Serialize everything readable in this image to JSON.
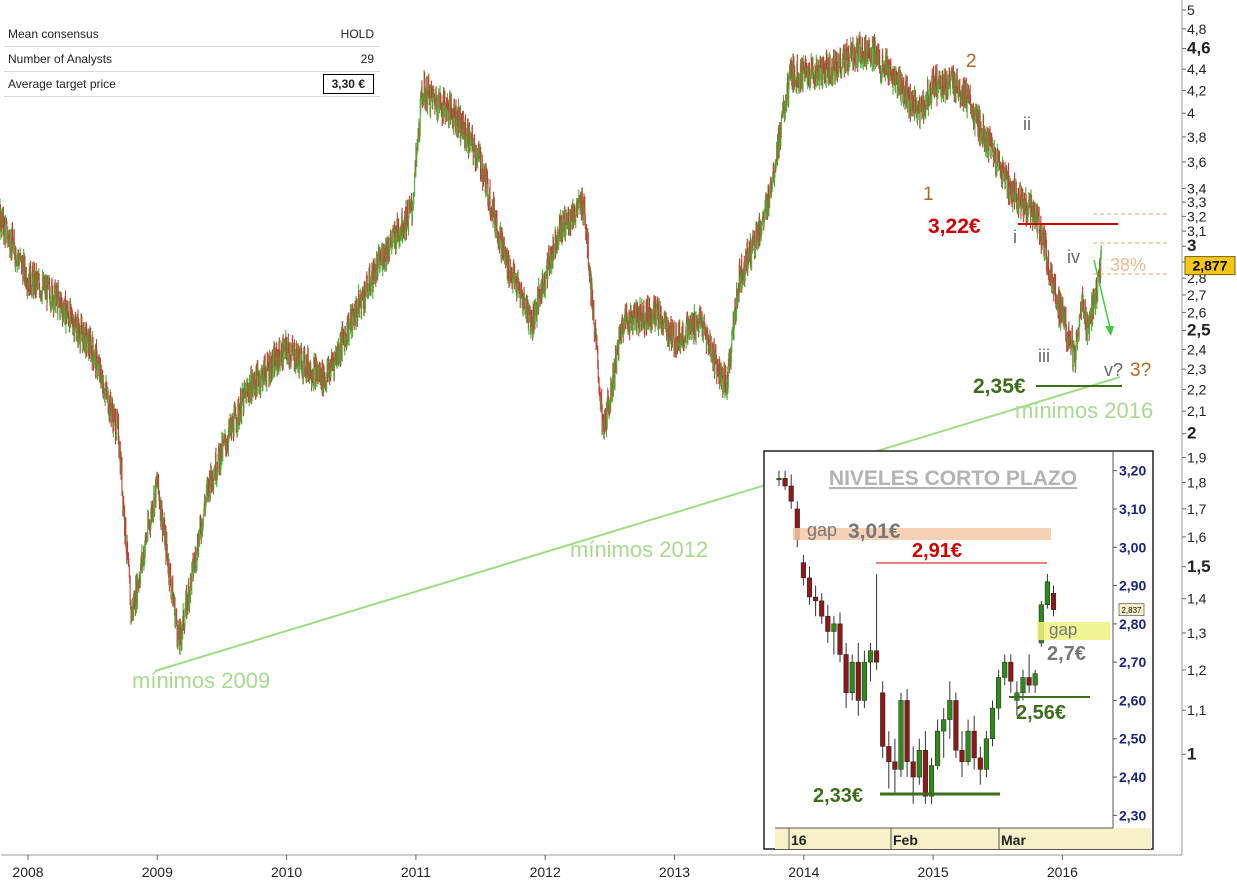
{
  "consensus_table": {
    "rows": [
      {
        "label": "Mean consensus",
        "value": "HOLD"
      },
      {
        "label": "Number of Analysts",
        "value": "29"
      },
      {
        "label": "Average target price",
        "value": "3,30 €"
      }
    ]
  },
  "chart_data": [
    {
      "type": "line",
      "x_axis": {
        "ticks": [
          "2008",
          "2009",
          "2010",
          "2011",
          "2012",
          "2013",
          "2014",
          "2015",
          "2016"
        ]
      },
      "y_axis": {
        "scale": "log",
        "ylim": [
          0.9,
          5
        ],
        "ticks": [
          "5",
          "4,8",
          "4,6",
          "4,4",
          "4,2",
          "4",
          "3,8",
          "3,6",
          "3,4",
          "3,3",
          "3,2",
          "3,1",
          "3",
          "2,9",
          "2,8",
          "2,7",
          "2,6",
          "2,5",
          "2,4",
          "2,3",
          "2,2",
          "2,1",
          "2",
          "1,9",
          "1,8",
          "1,7",
          "1,6",
          "1,5",
          "1,4",
          "1,3",
          "1,2",
          "1,1",
          "1"
        ],
        "bold_ticks": [
          "4,6",
          "3",
          "2,5",
          "2",
          "1,5",
          "1"
        ],
        "current_price_label": "2,877",
        "current_price": 2.877
      },
      "series": [
        {
          "x": [
            2007.5,
            2007.7,
            2008.0,
            2008.2,
            2008.5,
            2008.7,
            2008.8,
            2009.0,
            2009.17,
            2009.4,
            2009.7,
            2010.0,
            2010.1,
            2010.3,
            2010.5,
            2010.75,
            2010.97,
            2011.05,
            2011.3,
            2011.5,
            2011.7,
            2011.9,
            2012.1,
            2012.3,
            2012.45,
            2012.6,
            2012.85,
            2013.0,
            2013.2,
            2013.4,
            2013.5,
            2013.7,
            2013.9,
            2014.0,
            2014.2,
            2014.5,
            2014.7,
            2014.9,
            2015.0,
            2015.2,
            2015.4,
            2015.6,
            2015.8,
            2015.95,
            2016.1,
            2016.15,
            2016.2,
            2016.3
          ],
          "values": [
            3.4,
            3.35,
            2.8,
            2.7,
            2.4,
            2.0,
            1.35,
            1.8,
            1.27,
            1.8,
            2.2,
            2.4,
            2.35,
            2.25,
            2.55,
            2.95,
            3.25,
            4.2,
            4.0,
            3.6,
            2.9,
            2.55,
            3.1,
            3.3,
            2.0,
            2.55,
            2.6,
            2.45,
            2.55,
            2.2,
            2.8,
            3.2,
            4.35,
            4.35,
            4.4,
            4.6,
            4.3,
            4.0,
            4.25,
            4.25,
            3.8,
            3.4,
            3.2,
            2.7,
            2.35,
            2.65,
            2.5,
            2.877
          ]
        }
      ],
      "annotations": [
        {
          "text": "mínimos 2009"
        },
        {
          "text": "mínimos 2012"
        },
        {
          "text": "mínimos 2016"
        },
        {
          "text": "1"
        },
        {
          "text": "2"
        },
        {
          "text": "3?"
        },
        {
          "text": "i"
        },
        {
          "text": "ii"
        },
        {
          "text": "iii"
        },
        {
          "text": "iv"
        },
        {
          "text": "v?"
        },
        {
          "text": "3,22€"
        },
        {
          "text": "2,35€"
        },
        {
          "text": "38%"
        }
      ]
    },
    {
      "type": "candlestick",
      "title": "NIVELES CORTO PLAZO",
      "x_axis": {
        "ticks": [
          "16",
          "Feb",
          "Mar"
        ]
      },
      "y_axis": {
        "ylim": [
          2.28,
          3.22
        ],
        "ticks": [
          "3,20",
          "3,10",
          "3,00",
          "2,90",
          "2,80",
          "2,70",
          "2,60",
          "2,50",
          "2,40",
          "2,30"
        ],
        "current_price_label": "2,837",
        "current_price": 2.837
      },
      "candles": [
        {
          "o": 3.18,
          "h": 3.2,
          "l": 3.16,
          "c": 3.18
        },
        {
          "o": 3.18,
          "h": 3.2,
          "l": 3.15,
          "c": 3.16
        },
        {
          "o": 3.16,
          "h": 3.19,
          "l": 3.1,
          "c": 3.12
        },
        {
          "o": 3.1,
          "h": 3.12,
          "l": 3.0,
          "c": 3.02
        },
        {
          "o": 2.96,
          "h": 2.98,
          "l": 2.9,
          "c": 2.92
        },
        {
          "o": 2.92,
          "h": 2.95,
          "l": 2.85,
          "c": 2.87
        },
        {
          "o": 2.87,
          "h": 2.9,
          "l": 2.82,
          "c": 2.86
        },
        {
          "o": 2.86,
          "h": 2.88,
          "l": 2.8,
          "c": 2.82
        },
        {
          "o": 2.82,
          "h": 2.85,
          "l": 2.75,
          "c": 2.78
        },
        {
          "o": 2.78,
          "h": 2.82,
          "l": 2.72,
          "c": 2.8
        },
        {
          "o": 2.8,
          "h": 2.83,
          "l": 2.7,
          "c": 2.72
        },
        {
          "o": 2.72,
          "h": 2.75,
          "l": 2.58,
          "c": 2.62
        },
        {
          "o": 2.62,
          "h": 2.72,
          "l": 2.6,
          "c": 2.7
        },
        {
          "o": 2.7,
          "h": 2.75,
          "l": 2.56,
          "c": 2.6
        },
        {
          "o": 2.6,
          "h": 2.73,
          "l": 2.58,
          "c": 2.7
        },
        {
          "o": 2.7,
          "h": 2.75,
          "l": 2.65,
          "c": 2.73
        },
        {
          "o": 2.73,
          "h": 2.93,
          "l": 2.68,
          "c": 2.7
        },
        {
          "o": 2.62,
          "h": 2.65,
          "l": 2.45,
          "c": 2.48
        },
        {
          "o": 2.48,
          "h": 2.52,
          "l": 2.37,
          "c": 2.44
        },
        {
          "o": 2.44,
          "h": 2.5,
          "l": 2.36,
          "c": 2.42
        },
        {
          "o": 2.42,
          "h": 2.62,
          "l": 2.4,
          "c": 2.6
        },
        {
          "o": 2.6,
          "h": 2.63,
          "l": 2.4,
          "c": 2.44
        },
        {
          "o": 2.44,
          "h": 2.48,
          "l": 2.33,
          "c": 2.4
        },
        {
          "o": 2.4,
          "h": 2.5,
          "l": 2.38,
          "c": 2.47
        },
        {
          "o": 2.47,
          "h": 2.52,
          "l": 2.33,
          "c": 2.35
        },
        {
          "o": 2.35,
          "h": 2.45,
          "l": 2.33,
          "c": 2.43
        },
        {
          "o": 2.43,
          "h": 2.55,
          "l": 2.42,
          "c": 2.52
        },
        {
          "o": 2.52,
          "h": 2.58,
          "l": 2.45,
          "c": 2.55
        },
        {
          "o": 2.55,
          "h": 2.65,
          "l": 2.5,
          "c": 2.6
        },
        {
          "o": 2.6,
          "h": 2.62,
          "l": 2.45,
          "c": 2.47
        },
        {
          "o": 2.47,
          "h": 2.52,
          "l": 2.4,
          "c": 2.44
        },
        {
          "o": 2.44,
          "h": 2.55,
          "l": 2.43,
          "c": 2.52
        },
        {
          "o": 2.52,
          "h": 2.56,
          "l": 2.42,
          "c": 2.45
        },
        {
          "o": 2.45,
          "h": 2.48,
          "l": 2.38,
          "c": 2.42
        },
        {
          "o": 2.42,
          "h": 2.52,
          "l": 2.4,
          "c": 2.5
        },
        {
          "o": 2.5,
          "h": 2.6,
          "l": 2.48,
          "c": 2.58
        },
        {
          "o": 2.58,
          "h": 2.68,
          "l": 2.55,
          "c": 2.66
        },
        {
          "o": 2.66,
          "h": 2.72,
          "l": 2.64,
          "c": 2.7
        },
        {
          "o": 2.7,
          "h": 2.72,
          "l": 2.62,
          "c": 2.65
        },
        {
          "o": 2.6,
          "h": 2.65,
          "l": 2.56,
          "c": 2.62
        },
        {
          "o": 2.62,
          "h": 2.68,
          "l": 2.6,
          "c": 2.66
        },
        {
          "o": 2.66,
          "h": 2.72,
          "l": 2.62,
          "c": 2.64
        },
        {
          "o": 2.64,
          "h": 2.68,
          "l": 2.62,
          "c": 2.67
        },
        {
          "o": 2.75,
          "h": 2.86,
          "l": 2.74,
          "c": 2.85
        },
        {
          "o": 2.85,
          "h": 2.93,
          "l": 2.84,
          "c": 2.91
        },
        {
          "o": 2.88,
          "h": 2.9,
          "l": 2.82,
          "c": 2.837
        }
      ],
      "annotations": [
        {
          "text": "gap"
        },
        {
          "text": "3,01€"
        },
        {
          "text": "2,91€"
        },
        {
          "text": "gap"
        },
        {
          "text": "2,7€"
        },
        {
          "text": "2,56€"
        },
        {
          "text": "2,33€"
        }
      ]
    }
  ]
}
